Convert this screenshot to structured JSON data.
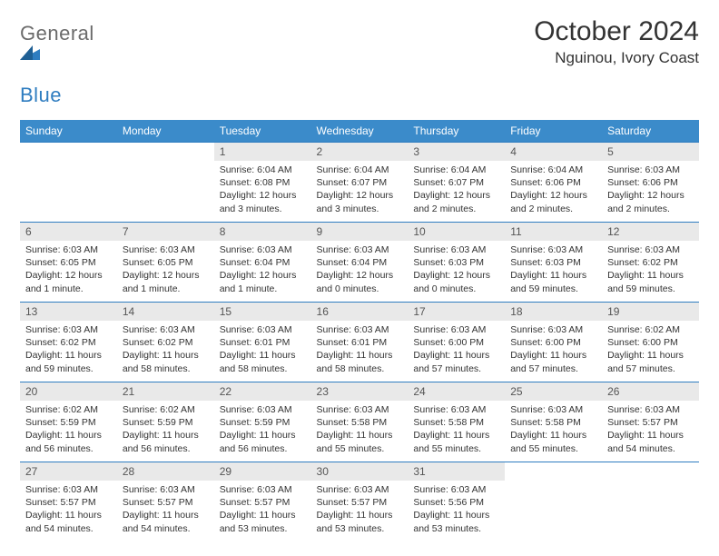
{
  "brand": {
    "textA": "General",
    "textB": "Blue",
    "colorA": "#6b6b6b",
    "colorB": "#2f7dc0"
  },
  "title": "October 2024",
  "location": "Nguinou, Ivory Coast",
  "header_bg": "#3b8bca",
  "header_fg": "#ffffff",
  "rule_color": "#2f7dc0",
  "daynum_bg": "#e9e9e9",
  "day_names": [
    "Sunday",
    "Monday",
    "Tuesday",
    "Wednesday",
    "Thursday",
    "Friday",
    "Saturday"
  ],
  "weeks": [
    [
      {
        "n": "",
        "sr": "",
        "ss": "",
        "dl": ""
      },
      {
        "n": "",
        "sr": "",
        "ss": "",
        "dl": ""
      },
      {
        "n": "1",
        "sr": "Sunrise: 6:04 AM",
        "ss": "Sunset: 6:08 PM",
        "dl": "Daylight: 12 hours and 3 minutes."
      },
      {
        "n": "2",
        "sr": "Sunrise: 6:04 AM",
        "ss": "Sunset: 6:07 PM",
        "dl": "Daylight: 12 hours and 3 minutes."
      },
      {
        "n": "3",
        "sr": "Sunrise: 6:04 AM",
        "ss": "Sunset: 6:07 PM",
        "dl": "Daylight: 12 hours and 2 minutes."
      },
      {
        "n": "4",
        "sr": "Sunrise: 6:04 AM",
        "ss": "Sunset: 6:06 PM",
        "dl": "Daylight: 12 hours and 2 minutes."
      },
      {
        "n": "5",
        "sr": "Sunrise: 6:03 AM",
        "ss": "Sunset: 6:06 PM",
        "dl": "Daylight: 12 hours and 2 minutes."
      }
    ],
    [
      {
        "n": "6",
        "sr": "Sunrise: 6:03 AM",
        "ss": "Sunset: 6:05 PM",
        "dl": "Daylight: 12 hours and 1 minute."
      },
      {
        "n": "7",
        "sr": "Sunrise: 6:03 AM",
        "ss": "Sunset: 6:05 PM",
        "dl": "Daylight: 12 hours and 1 minute."
      },
      {
        "n": "8",
        "sr": "Sunrise: 6:03 AM",
        "ss": "Sunset: 6:04 PM",
        "dl": "Daylight: 12 hours and 1 minute."
      },
      {
        "n": "9",
        "sr": "Sunrise: 6:03 AM",
        "ss": "Sunset: 6:04 PM",
        "dl": "Daylight: 12 hours and 0 minutes."
      },
      {
        "n": "10",
        "sr": "Sunrise: 6:03 AM",
        "ss": "Sunset: 6:03 PM",
        "dl": "Daylight: 12 hours and 0 minutes."
      },
      {
        "n": "11",
        "sr": "Sunrise: 6:03 AM",
        "ss": "Sunset: 6:03 PM",
        "dl": "Daylight: 11 hours and 59 minutes."
      },
      {
        "n": "12",
        "sr": "Sunrise: 6:03 AM",
        "ss": "Sunset: 6:02 PM",
        "dl": "Daylight: 11 hours and 59 minutes."
      }
    ],
    [
      {
        "n": "13",
        "sr": "Sunrise: 6:03 AM",
        "ss": "Sunset: 6:02 PM",
        "dl": "Daylight: 11 hours and 59 minutes."
      },
      {
        "n": "14",
        "sr": "Sunrise: 6:03 AM",
        "ss": "Sunset: 6:02 PM",
        "dl": "Daylight: 11 hours and 58 minutes."
      },
      {
        "n": "15",
        "sr": "Sunrise: 6:03 AM",
        "ss": "Sunset: 6:01 PM",
        "dl": "Daylight: 11 hours and 58 minutes."
      },
      {
        "n": "16",
        "sr": "Sunrise: 6:03 AM",
        "ss": "Sunset: 6:01 PM",
        "dl": "Daylight: 11 hours and 58 minutes."
      },
      {
        "n": "17",
        "sr": "Sunrise: 6:03 AM",
        "ss": "Sunset: 6:00 PM",
        "dl": "Daylight: 11 hours and 57 minutes."
      },
      {
        "n": "18",
        "sr": "Sunrise: 6:03 AM",
        "ss": "Sunset: 6:00 PM",
        "dl": "Daylight: 11 hours and 57 minutes."
      },
      {
        "n": "19",
        "sr": "Sunrise: 6:02 AM",
        "ss": "Sunset: 6:00 PM",
        "dl": "Daylight: 11 hours and 57 minutes."
      }
    ],
    [
      {
        "n": "20",
        "sr": "Sunrise: 6:02 AM",
        "ss": "Sunset: 5:59 PM",
        "dl": "Daylight: 11 hours and 56 minutes."
      },
      {
        "n": "21",
        "sr": "Sunrise: 6:02 AM",
        "ss": "Sunset: 5:59 PM",
        "dl": "Daylight: 11 hours and 56 minutes."
      },
      {
        "n": "22",
        "sr": "Sunrise: 6:03 AM",
        "ss": "Sunset: 5:59 PM",
        "dl": "Daylight: 11 hours and 56 minutes."
      },
      {
        "n": "23",
        "sr": "Sunrise: 6:03 AM",
        "ss": "Sunset: 5:58 PM",
        "dl": "Daylight: 11 hours and 55 minutes."
      },
      {
        "n": "24",
        "sr": "Sunrise: 6:03 AM",
        "ss": "Sunset: 5:58 PM",
        "dl": "Daylight: 11 hours and 55 minutes."
      },
      {
        "n": "25",
        "sr": "Sunrise: 6:03 AM",
        "ss": "Sunset: 5:58 PM",
        "dl": "Daylight: 11 hours and 55 minutes."
      },
      {
        "n": "26",
        "sr": "Sunrise: 6:03 AM",
        "ss": "Sunset: 5:57 PM",
        "dl": "Daylight: 11 hours and 54 minutes."
      }
    ],
    [
      {
        "n": "27",
        "sr": "Sunrise: 6:03 AM",
        "ss": "Sunset: 5:57 PM",
        "dl": "Daylight: 11 hours and 54 minutes."
      },
      {
        "n": "28",
        "sr": "Sunrise: 6:03 AM",
        "ss": "Sunset: 5:57 PM",
        "dl": "Daylight: 11 hours and 54 minutes."
      },
      {
        "n": "29",
        "sr": "Sunrise: 6:03 AM",
        "ss": "Sunset: 5:57 PM",
        "dl": "Daylight: 11 hours and 53 minutes."
      },
      {
        "n": "30",
        "sr": "Sunrise: 6:03 AM",
        "ss": "Sunset: 5:57 PM",
        "dl": "Daylight: 11 hours and 53 minutes."
      },
      {
        "n": "31",
        "sr": "Sunrise: 6:03 AM",
        "ss": "Sunset: 5:56 PM",
        "dl": "Daylight: 11 hours and 53 minutes."
      },
      {
        "n": "",
        "sr": "",
        "ss": "",
        "dl": ""
      },
      {
        "n": "",
        "sr": "",
        "ss": "",
        "dl": ""
      }
    ]
  ]
}
